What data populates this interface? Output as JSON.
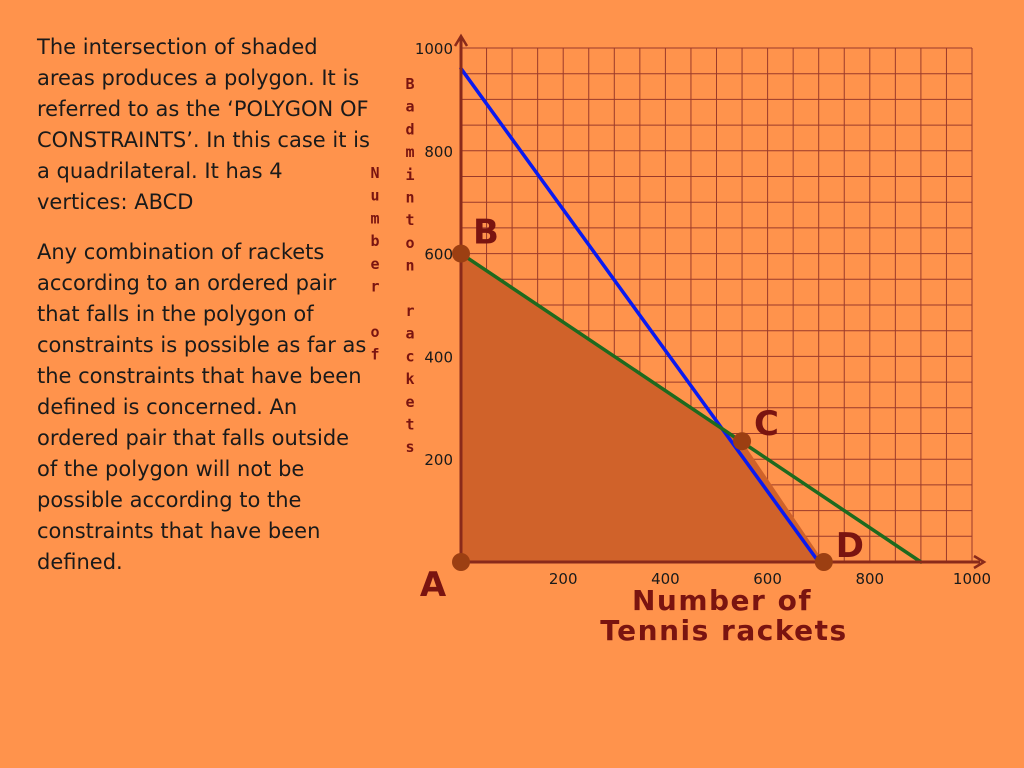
{
  "text": {
    "paragraph1": "The intersection of shaded areas produces a polygon. It is referred to as the ‘POLYGON OF CONSTRAINTS’. In this case it is a quadrilateral. It has 4 vertices: ABCD",
    "paragraph2": "Any combination of rackets according to an ordered pair that falls in the polygon of constraints is possible as far as the constraints that have been defined is concerned. An ordered pair that falls outside of the polygon will not be possible according to the constraints that have been defined."
  },
  "chart_data": {
    "type": "line",
    "xlabel": "Number of Tennis rackets",
    "ylabel_parts": [
      "Number of",
      "Badminton rackets"
    ],
    "xlim": [
      0,
      1000
    ],
    "ylim": [
      0,
      1000
    ],
    "xticks": [
      "200",
      "400",
      "600",
      "800",
      "1000"
    ],
    "yticks": [
      "200",
      "400",
      "600",
      "800",
      "1000"
    ],
    "grid": true,
    "lines": [
      {
        "color": "#0A1AF0",
        "points": [
          [
            0,
            960
          ],
          [
            700,
            0
          ]
        ]
      },
      {
        "color": "#1E6A1E",
        "points": [
          [
            0,
            600
          ],
          [
            900,
            0
          ]
        ]
      }
    ],
    "polygon": {
      "color": "#D0622A",
      "points": [
        [
          0,
          0
        ],
        [
          0,
          600
        ],
        [
          550,
          235
        ],
        [
          710,
          0
        ]
      ]
    },
    "vertices": [
      {
        "name": "A",
        "x": 0,
        "y": 0
      },
      {
        "name": "B",
        "x": 0,
        "y": 600
      },
      {
        "name": "C",
        "x": 550,
        "y": 235
      },
      {
        "name": "D",
        "x": 710,
        "y": 0
      }
    ],
    "colors": {
      "background": "#FF934C",
      "grid": "#9B3A2A",
      "axis": "#8A2A1A",
      "vertex": "#9C3F12",
      "label": "#7A1410"
    }
  }
}
